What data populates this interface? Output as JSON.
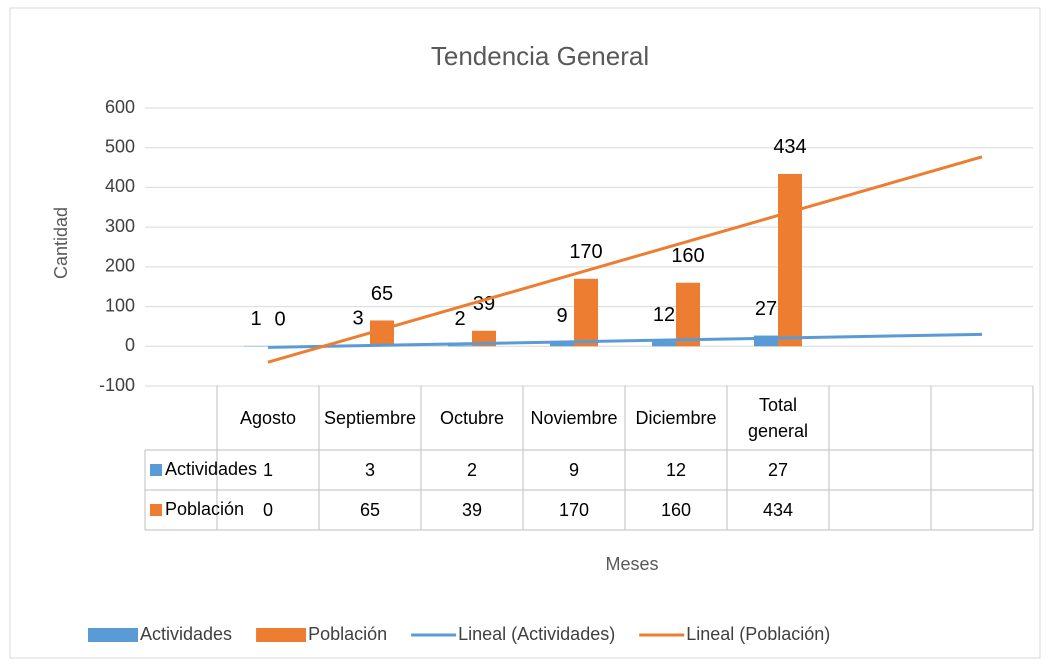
{
  "chart_data": {
    "type": "bar",
    "title": "Tendencia General",
    "y_label": "Cantidad",
    "x_label": "Meses",
    "categories": [
      "Agosto",
      "Septiembre",
      "Octubre",
      "Noviembre",
      "Diciembre",
      "Total general",
      null,
      null
    ],
    "series": [
      {
        "name": "Actividades",
        "color": "#5b9bd5",
        "values": [
          1,
          3,
          2,
          9,
          12,
          27,
          null,
          null
        ]
      },
      {
        "name": "Población",
        "color": "#ed7d31",
        "values": [
          0,
          65,
          39,
          170,
          160,
          434,
          null,
          null
        ]
      }
    ],
    "trendlines": [
      {
        "name": "Lineal (Actividades)",
        "series": 0,
        "color": "#5b9bd5"
      },
      {
        "name": "Lineal (Población)",
        "series": 1,
        "color": "#ed7d31"
      }
    ],
    "ylim": [
      -100,
      600
    ],
    "yticks": [
      -100,
      0,
      100,
      200,
      300,
      400,
      500,
      600
    ],
    "grid": true,
    "legend": "bottom",
    "data_table": true
  }
}
